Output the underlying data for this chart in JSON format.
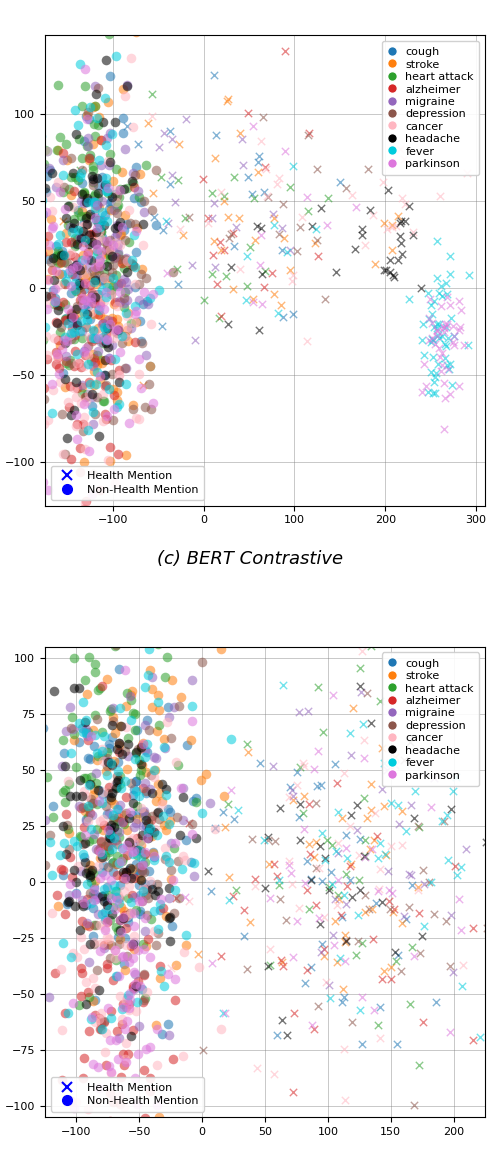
{
  "title1": "(c) BERT Contrastive",
  "categories": [
    "cough",
    "stroke",
    "heart attack",
    "alzheimer",
    "migraine",
    "depression",
    "cancer",
    "headache",
    "fever",
    "parkinson"
  ],
  "colors": [
    "#1f77b4",
    "#ff7f0e",
    "#2ca02c",
    "#d62728",
    "#9467bd",
    "#8c564b",
    "#ffb6c1",
    "#000000",
    "#00ccdd",
    "#dd77dd"
  ],
  "alpha_circle": 0.55,
  "alpha_x": 0.55,
  "markersize_o": 48,
  "markersize_x": 28,
  "legend_fontsize": 8,
  "tick_fontsize": 8,
  "title_fontsize": 13,
  "figsize": [
    5.0,
    11.76
  ],
  "dpi": 100,
  "plot1": {
    "xlim": [
      -175,
      310
    ],
    "ylim": [
      -125,
      145
    ],
    "xticks": [
      -100,
      0,
      100,
      200,
      300
    ],
    "yticks": [
      -100,
      -50,
      0,
      50,
      100
    ]
  },
  "plot2": {
    "xlim": [
      -125,
      225
    ],
    "ylim": [
      -105,
      105
    ],
    "xticks": [
      -100,
      -50,
      0,
      50,
      100,
      150,
      200
    ],
    "yticks": [
      -100,
      -75,
      -50,
      -25,
      0,
      25,
      50,
      75,
      100
    ]
  }
}
